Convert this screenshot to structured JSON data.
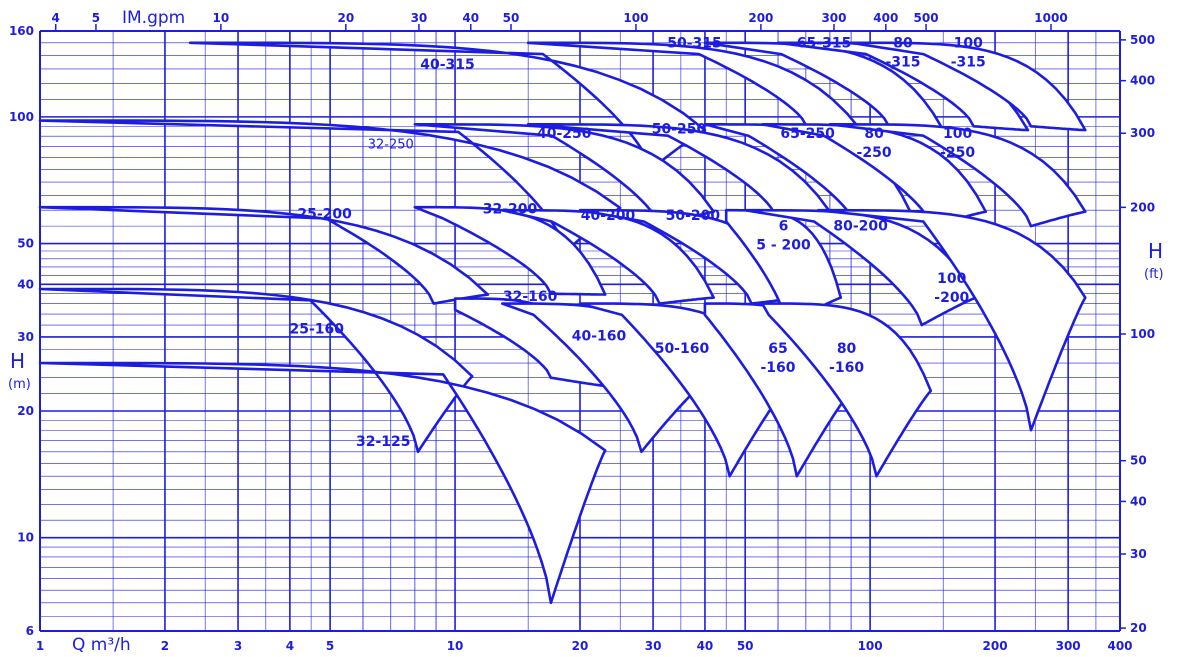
{
  "colors": {
    "line": "#1d1de0",
    "background": "#ffffff"
  },
  "chart_data": {
    "type": "area",
    "title": "",
    "x_axis": {
      "label": "Q m³/h",
      "scale": "log",
      "range": [
        1,
        400
      ],
      "ticks": [
        "1",
        "2",
        "3",
        "4",
        "5",
        "10",
        "20",
        "30",
        "40",
        "50",
        "100",
        "200",
        "300",
        "400"
      ]
    },
    "x2_axis": {
      "label": "IM.gpm",
      "scale": "log",
      "ticks": [
        "4",
        "5",
        "10",
        "20",
        "30",
        "40",
        "50",
        "100",
        "200",
        "300",
        "400",
        "500",
        "1000"
      ]
    },
    "y_axis": {
      "label": "H",
      "unit": "(m)",
      "scale": "log",
      "range": [
        6,
        160
      ],
      "ticks": [
        "6",
        "10",
        "20",
        "30",
        "40",
        "50",
        "100",
        "160"
      ]
    },
    "y2_axis": {
      "label": "H",
      "unit": "(ft)",
      "scale": "log",
      "ticks": [
        "20",
        "30",
        "40",
        "50",
        "100",
        "200",
        "300",
        "400",
        "500"
      ]
    },
    "grid": true,
    "legend": "none",
    "series": [
      {
        "name": "40-315",
        "q_range": [
          2.3,
          40
        ],
        "h_max": 150,
        "h_min": 75
      },
      {
        "name": "50-315",
        "q_range": [
          15,
          95
        ],
        "h_max": 150,
        "h_min": 95
      },
      {
        "name": "65-315",
        "q_range": [
          40,
          150
        ],
        "h_max": 150,
        "h_min": 95
      },
      {
        "name": "80 -315",
        "q_range": [
          60,
          240
        ],
        "h_max": 150,
        "h_min": 95
      },
      {
        "name": "100 -315",
        "q_range": [
          90,
          330
        ],
        "h_max": 150,
        "h_min": 95
      },
      {
        "name": "32-250",
        "q_range": [
          1,
          25
        ],
        "h_max": 98,
        "h_min": 48
      },
      {
        "name": "40-250",
        "q_range": [
          8,
          42
        ],
        "h_max": 96,
        "h_min": 55
      },
      {
        "name": "50-250",
        "q_range": [
          15,
          80
        ],
        "h_max": 96,
        "h_min": 58
      },
      {
        "name": "65-250",
        "q_range": [
          40,
          125
        ],
        "h_max": 96,
        "h_min": 55
      },
      {
        "name": "80 -250",
        "q_range": [
          55,
          190
        ],
        "h_max": 96,
        "h_min": 55
      },
      {
        "name": "100 -250",
        "q_range": [
          80,
          330
        ],
        "h_max": 96,
        "h_min": 55
      },
      {
        "name": "25-200",
        "q_range": [
          1,
          12
        ],
        "h_max": 61,
        "h_min": 36
      },
      {
        "name": "32-200",
        "q_range": [
          8,
          23
        ],
        "h_max": 61,
        "h_min": 38
      },
      {
        "name": "40-200",
        "q_range": [
          13,
          42
        ],
        "h_max": 60,
        "h_min": 36
      },
      {
        "name": "50-200",
        "q_range": [
          20,
          70
        ],
        "h_max": 60,
        "h_min": 36
      },
      {
        "name": "6 5 - 200",
        "q_range": [
          45,
          85
        ],
        "h_max": 60,
        "h_min": 32
      },
      {
        "name": "80-200",
        "q_range": [
          50,
          180
        ],
        "h_max": 60,
        "h_min": 32
      },
      {
        "name": "100 -200",
        "q_range": [
          75,
          330
        ],
        "h_max": 60,
        "h_min": 18
      },
      {
        "name": "25-160",
        "q_range": [
          1,
          11
        ],
        "h_max": 39,
        "h_min": 16
      },
      {
        "name": "32-160",
        "q_range": [
          10,
          23
        ],
        "h_max": 37,
        "h_min": 24
      },
      {
        "name": "40-160",
        "q_range": [
          13,
          38
        ],
        "h_max": 36,
        "h_min": 16
      },
      {
        "name": "50-160",
        "q_range": [
          20,
          62
        ],
        "h_max": 36,
        "h_min": 14
      },
      {
        "name": "65 -160",
        "q_range": [
          40,
          90
        ],
        "h_max": 36,
        "h_min": 14
      },
      {
        "name": "80 -160",
        "q_range": [
          55,
          140
        ],
        "h_max": 36,
        "h_min": 14
      },
      {
        "name": "32-125",
        "q_range": [
          1,
          23
        ],
        "h_max": 26,
        "h_min": 7
      }
    ]
  }
}
